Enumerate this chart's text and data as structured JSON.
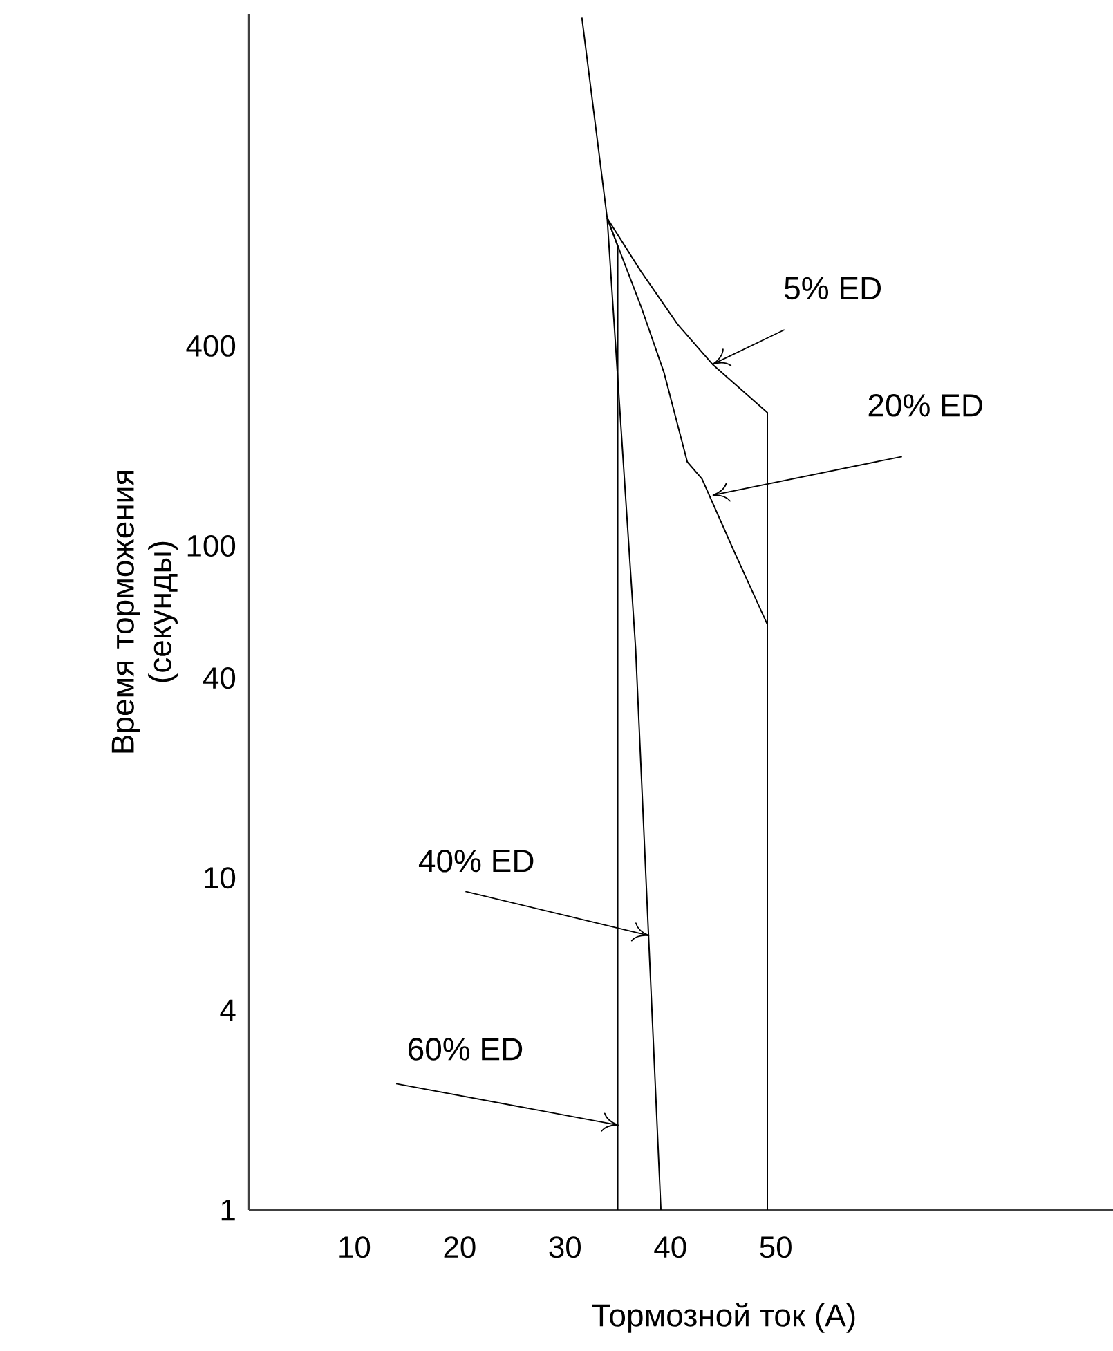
{
  "chart_data": {
    "type": "line",
    "xlabel": "Тормозной ток (А)",
    "ylabel": "Время торможения (секунды)",
    "log": "y",
    "xlim": [
      0,
      82
    ],
    "ylim": [
      1,
      4000
    ],
    "xticks": [
      10,
      20,
      30,
      40,
      50
    ],
    "yticks": [
      1,
      4,
      10,
      40,
      100,
      400
    ],
    "marker": "none",
    "line_style": "solid",
    "series": [
      {
        "color": "#000000",
        "x": [
          31.6,
          34.0,
          37.2,
          40.7,
          44.0,
          49.2,
          49.2
        ],
        "values": [
          3900,
          970,
          671,
          464,
          352,
          252,
          1
        ]
      },
      {
        "color": "#000000",
        "x": [
          34.0,
          37.2,
          39.4,
          41.6,
          43.0,
          46.0,
          49.2
        ],
        "values": [
          970,
          527,
          332,
          179,
          159,
          97,
          58
        ]
      },
      {
        "color": "#000000",
        "x": [
          34.0,
          36.7,
          39.1
        ],
        "values": [
          970,
          49,
          1
        ]
      },
      {
        "color": "#000000",
        "x": [
          34.0,
          35.0,
          35.0
        ],
        "values": [
          970,
          800,
          1
        ]
      }
    ],
    "annotations": [
      {
        "text": "5% ED",
        "x": 44.0,
        "y": 352
      },
      {
        "text": "20% ED",
        "x": 44.0,
        "y": 142
      },
      {
        "text": "40% ED",
        "x": 38.0,
        "y": 6.7
      },
      {
        "text": "60% ED",
        "x": 35.1,
        "y": 1.8
      }
    ]
  }
}
